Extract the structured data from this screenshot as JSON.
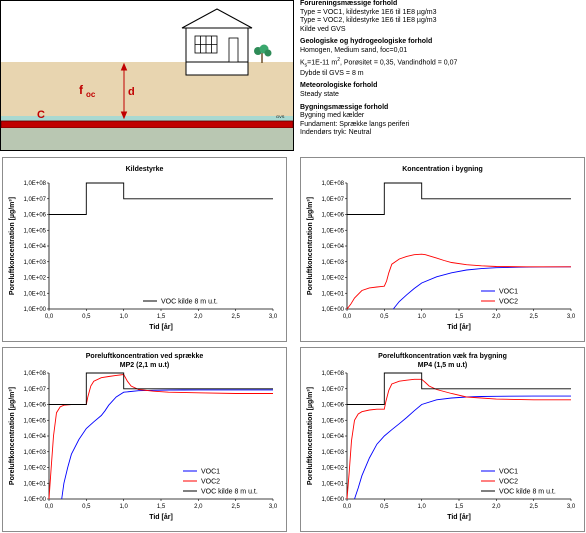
{
  "schematic": {
    "label_foc_base": "f",
    "label_foc_sub": "oc",
    "label_d": "d",
    "label_c": "C",
    "label_gvs": "GVS",
    "colors": {
      "sky": "#ffffff",
      "soil": "#e8d5b0",
      "capillary": "#a9d9d1",
      "source": "#c00000",
      "aquifer": "#b9c7b2",
      "frame": "#000000"
    }
  },
  "info": {
    "sections": [
      {
        "heading": "Forureningsmæssige forhold",
        "lines": [
          "Type = VOC1, kildestyrke 1E6 til 1E8 µg/m3",
          "Type = VOC2, kildestyrke 1E6 til 1E8 µg/m3",
          "Kilde ved GVS"
        ]
      },
      {
        "heading": "Geologiske og hydrogeologiske forhold",
        "lines": [
          "Homogen, Medium sand, foc=0,01",
          "K_s=1E-11 m², Porøsitet = 0,35, Vandindhold = 0,07",
          "Dybde til GVS = 8 m"
        ]
      },
      {
        "heading": "Meteorologiske forhold",
        "lines": [
          "Steady state"
        ]
      },
      {
        "heading": "Bygningsmæssige forhold",
        "lines": [
          "Bygning med kælder",
          "Fundament: Sprække langs periferi",
          "Indendørs tryk: Neutral"
        ]
      }
    ]
  },
  "axes": {
    "ylabel": "Poreluftkoncentration [µg/m³]",
    "xlabel": "Tid [år]",
    "y_ticks": [
      "1,0E+00",
      "1,0E+01",
      "1,0E+02",
      "1,0E+03",
      "1,0E+04",
      "1,0E+05",
      "1,0E+06",
      "1,0E+07",
      "1,0E+08"
    ],
    "x_ticks": [
      "0,0",
      "0,5",
      "1,0",
      "1,5",
      "2,0",
      "2,5",
      "3,0"
    ]
  },
  "colors": {
    "voc1": "#0000ff",
    "voc2": "#ff0000",
    "source": "#000000"
  },
  "chart_data": [
    {
      "type": "line",
      "title": "Kildestyrke",
      "subtitle": "",
      "xlabel": "Tid [år]",
      "ylabel": "Poreluftkoncentration [µg/m³]",
      "xlim": [
        0,
        3
      ],
      "ylim": [
        1,
        100000000
      ],
      "yscale": "log",
      "grid": false,
      "legend_position": "bottom-right",
      "series": [
        {
          "name": "VOC kilde 8 m u.t.",
          "color": "#000000",
          "x": [
            0,
            0.5,
            0.5,
            1.0,
            1.0,
            3.0
          ],
          "y": [
            1000000,
            1000000,
            100000000,
            100000000,
            10000000,
            10000000
          ]
        }
      ]
    },
    {
      "type": "line",
      "title": "Koncentration i bygning",
      "subtitle": "",
      "xlabel": "Tid [år]",
      "ylabel": "Poreluftkoncentration [µg/m³]",
      "xlim": [
        0,
        3
      ],
      "ylim": [
        1,
        100000000
      ],
      "yscale": "log",
      "grid": false,
      "legend_position": "bottom-right",
      "series": [
        {
          "name": "VOC1",
          "color": "#0000ff",
          "x": [
            0.62,
            0.7,
            0.8,
            0.9,
            1.0,
            1.2,
            1.4,
            1.6,
            1.8,
            2.0,
            2.3,
            2.6,
            3.0
          ],
          "y": [
            1,
            3,
            8,
            20,
            45,
            110,
            200,
            300,
            370,
            420,
            450,
            470,
            480
          ]
        },
        {
          "name": "VOC2",
          "color": "#ff0000",
          "x": [
            0,
            0.05,
            0.1,
            0.2,
            0.3,
            0.4,
            0.5,
            0.53,
            0.56,
            0.6,
            0.7,
            0.8,
            0.9,
            1.0,
            1.05,
            1.1,
            1.2,
            1.3,
            1.4,
            1.6,
            1.8,
            2.0,
            2.4,
            3.0
          ],
          "y": [
            1,
            2,
            5,
            15,
            22,
            25,
            28,
            60,
            200,
            700,
            1500,
            2200,
            2800,
            3000,
            2800,
            2400,
            1700,
            1200,
            900,
            650,
            550,
            500,
            480,
            480
          ]
        },
        {
          "name": "",
          "color": "#000000",
          "x": [
            0,
            0.5,
            0.5,
            1.0,
            1.0,
            3.0
          ],
          "y": [
            1000000,
            1000000,
            100000000,
            100000000,
            10000000,
            10000000
          ]
        }
      ]
    },
    {
      "type": "line",
      "title": "Poreluftkoncentration ved sprække",
      "subtitle": "MP2 (2,1 m u.t)",
      "xlabel": "Tid [år]",
      "ylabel": "Poreluftkoncentration [µg/m³]",
      "xlim": [
        0,
        3
      ],
      "ylim": [
        1,
        100000000
      ],
      "yscale": "log",
      "grid": false,
      "legend_position": "bottom-right",
      "series": [
        {
          "name": "VOC1",
          "color": "#0000ff",
          "x": [
            0.17,
            0.2,
            0.25,
            0.3,
            0.4,
            0.5,
            0.6,
            0.7,
            0.75,
            0.8,
            0.9,
            1.0,
            1.2,
            1.4,
            1.6,
            1.8,
            2.0,
            2.5,
            3.0
          ],
          "y": [
            1,
            10,
            100,
            700,
            6000,
            30000,
            80000,
            200000,
            400000,
            900000,
            3000000,
            6000000,
            7500000,
            8000000,
            8200000,
            8300000,
            8400000,
            8500000,
            8500000
          ]
        },
        {
          "name": "VOC2",
          "color": "#ff0000",
          "x": [
            0,
            0.03,
            0.06,
            0.1,
            0.15,
            0.2,
            0.3,
            0.4,
            0.5,
            0.52,
            0.56,
            0.6,
            0.7,
            0.8,
            0.9,
            1.0,
            1.05,
            1.1,
            1.2,
            1.4,
            1.6,
            2.0,
            2.5,
            3.0
          ],
          "y": [
            1,
            100,
            10000,
            300000,
            700000,
            900000,
            1000000,
            1000000,
            1000000,
            3000000,
            15000000,
            30000000,
            50000000,
            60000000,
            70000000,
            80000000,
            30000000,
            15000000,
            9000000,
            7000000,
            6000000,
            5500000,
            5000000,
            5000000
          ]
        },
        {
          "name": "VOC kilde 8 m u.t.",
          "color": "#000000",
          "x": [
            0,
            0.5,
            0.5,
            1.0,
            1.0,
            3.0
          ],
          "y": [
            1000000,
            1000000,
            100000000,
            100000000,
            10000000,
            10000000
          ]
        }
      ]
    },
    {
      "type": "line",
      "title": "Poreluftkoncentration væk fra bygning",
      "subtitle": "MP4 (1,5 m u.t)",
      "xlabel": "Tid [år]",
      "ylabel": "Poreluftkoncentration [µg/m³]",
      "xlim": [
        0,
        3
      ],
      "ylim": [
        1,
        100000000
      ],
      "yscale": "log",
      "grid": false,
      "legend_position": "bottom-right",
      "series": [
        {
          "name": "VOC1",
          "color": "#0000ff",
          "x": [
            0.1,
            0.15,
            0.2,
            0.3,
            0.4,
            0.5,
            0.6,
            0.7,
            0.8,
            0.9,
            1.0,
            1.2,
            1.4,
            1.6,
            1.8,
            2.0,
            2.5,
            3.0
          ],
          "y": [
            1,
            5,
            30,
            400,
            3000,
            10000,
            25000,
            60000,
            150000,
            400000,
            1000000,
            2000000,
            2600000,
            3000000,
            3200000,
            3300000,
            3400000,
            3400000
          ]
        },
        {
          "name": "VOC2",
          "color": "#ff0000",
          "x": [
            0,
            0.03,
            0.06,
            0.1,
            0.15,
            0.2,
            0.3,
            0.4,
            0.5,
            0.52,
            0.56,
            0.6,
            0.7,
            0.8,
            0.9,
            1.0,
            1.05,
            1.1,
            1.2,
            1.4,
            1.6,
            2.0,
            2.5,
            3.0
          ],
          "y": [
            1,
            50,
            5000,
            100000,
            250000,
            350000,
            450000,
            500000,
            500000,
            1500000,
            8000000,
            20000000,
            30000000,
            35000000,
            40000000,
            40000000,
            25000000,
            15000000,
            9000000,
            5000000,
            3000000,
            2200000,
            2000000,
            2000000
          ]
        },
        {
          "name": "VOC kilde 8 m u.t.",
          "color": "#000000",
          "x": [
            0,
            0.5,
            0.5,
            1.0,
            1.0,
            3.0
          ],
          "y": [
            1000000,
            1000000,
            100000000,
            100000000,
            10000000,
            10000000
          ]
        }
      ]
    }
  ]
}
